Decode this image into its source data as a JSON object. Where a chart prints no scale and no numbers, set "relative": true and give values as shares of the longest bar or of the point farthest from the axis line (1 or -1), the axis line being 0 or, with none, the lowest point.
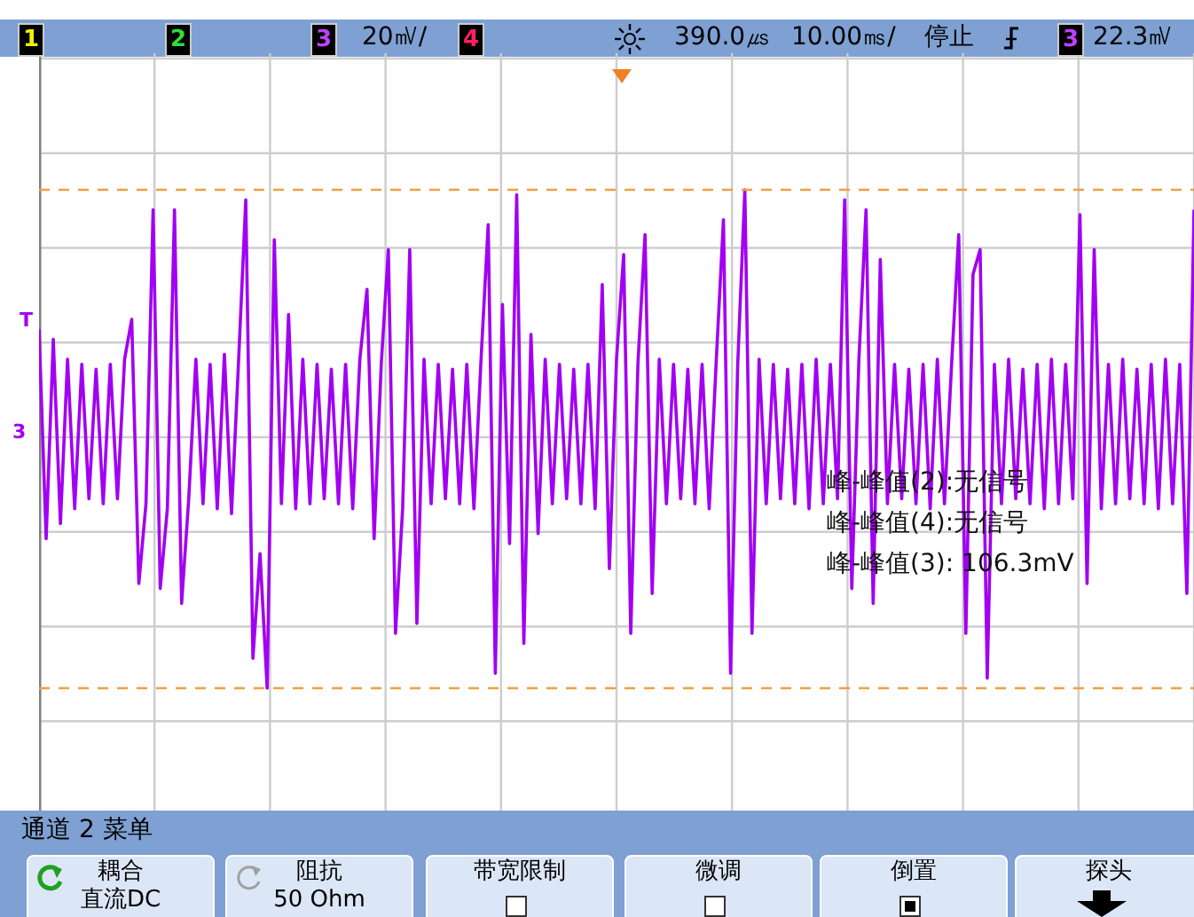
{
  "chart_data": {
    "type": "line",
    "relative": true,
    "grid": true,
    "marker": "none",
    "color": "#a100f2",
    "categories": [
      null,
      null,
      null,
      null,
      null,
      null,
      null,
      null,
      null,
      null,
      null,
      null,
      null,
      null,
      null,
      null,
      null,
      null,
      null,
      null,
      null,
      null,
      null,
      null,
      null,
      null,
      null,
      null,
      null,
      null,
      null,
      null,
      null,
      null,
      null,
      null,
      null,
      null,
      null,
      null,
      null,
      null,
      null,
      null,
      null,
      null,
      null,
      null,
      null,
      null,
      null,
      null,
      null,
      null,
      null,
      null,
      null,
      null,
      null,
      null,
      null,
      null,
      null,
      null,
      null,
      null,
      null,
      null,
      null,
      null,
      null,
      null,
      null,
      null,
      null,
      null,
      null,
      null,
      null,
      null,
      null,
      null,
      null,
      null,
      null,
      null,
      null,
      null,
      null,
      null,
      null,
      null,
      null,
      null,
      null,
      null,
      null,
      null,
      null,
      null,
      null,
      null,
      null,
      null,
      null,
      null,
      null,
      null,
      null,
      null,
      null,
      null,
      null,
      null,
      null,
      null,
      null,
      null,
      null,
      null,
      null,
      null,
      null,
      null,
      null,
      null,
      null,
      null,
      null,
      null,
      null,
      null,
      null,
      null,
      null,
      null,
      null,
      null,
      null,
      null,
      null,
      null,
      null,
      null,
      null,
      null,
      null,
      null,
      null,
      null,
      null,
      null,
      null,
      null,
      null,
      null,
      null,
      null,
      null,
      null,
      null,
      null,
      null
    ],
    "values": [
      0.72,
      0.3,
      0.7,
      0.33,
      0.66,
      0.36,
      0.65,
      0.38,
      0.64,
      0.37,
      0.65,
      0.38,
      0.66,
      0.74,
      0.21,
      0.37,
      0.96,
      0.2,
      0.36,
      0.96,
      0.17,
      0.38,
      0.66,
      0.37,
      0.65,
      0.36,
      0.67,
      0.35,
      0.66,
      0.98,
      0.06,
      0.27,
      0.0,
      0.9,
      0.37,
      0.75,
      0.36,
      0.66,
      0.37,
      0.65,
      0.38,
      0.64,
      0.37,
      0.65,
      0.36,
      0.66,
      0.8,
      0.3,
      0.65,
      0.88,
      0.11,
      0.36,
      0.88,
      0.13,
      0.66,
      0.37,
      0.65,
      0.38,
      0.64,
      0.37,
      0.65,
      0.36,
      0.66,
      0.93,
      0.03,
      0.77,
      0.29,
      0.99,
      0.09,
      0.71,
      0.31,
      0.66,
      0.37,
      0.65,
      0.38,
      0.64,
      0.37,
      0.65,
      0.36,
      0.81,
      0.24,
      0.66,
      0.87,
      0.11,
      0.65,
      0.91,
      0.19,
      0.66,
      0.37,
      0.65,
      0.38,
      0.64,
      0.37,
      0.65,
      0.36,
      0.66,
      0.94,
      0.03,
      0.65,
      1.0,
      0.11,
      0.66,
      0.37,
      0.65,
      0.38,
      0.64,
      0.37,
      0.65,
      0.36,
      0.66,
      0.37,
      0.65,
      0.38,
      0.98,
      0.2,
      0.66,
      0.96,
      0.17,
      0.86,
      0.37,
      0.65,
      0.38,
      0.64,
      0.37,
      0.65,
      0.36,
      0.66,
      0.37,
      0.65,
      0.91,
      0.11,
      0.83,
      0.88,
      0.02,
      0.65,
      0.37,
      0.66,
      0.38,
      0.64,
      0.37,
      0.65,
      0.36,
      0.66,
      0.37,
      0.65,
      0.38,
      0.95,
      0.21,
      0.88,
      0.36,
      0.65,
      0.37,
      0.66,
      0.38,
      0.64,
      0.37,
      0.65,
      0.36,
      0.66,
      0.37,
      0.65,
      0.19,
      0.96
    ],
    "ref_lines": [
      {
        "axis": "y",
        "value": 1,
        "color": "#f0a040",
        "line_style": "dashed"
      },
      {
        "axis": "y",
        "value": 0,
        "color": "#f0a040",
        "line_style": "dashed"
      }
    ],
    "annotations": [
      "1",
      "2",
      "3",
      "20㎷/",
      "4",
      "390.0㎲",
      "10.00㎳/",
      "停止",
      "3",
      "22.3㎷",
      "T",
      "3",
      "峰-峰值(2):无信号",
      "峰-峰值(4):无信号",
      "峰-峰值(3): 106.3mV",
      "通道 2 菜单",
      "耦合",
      "直流DC",
      "阻抗",
      "50 Ohm",
      "带宽限制",
      "微调",
      "倒置",
      "探头"
    ]
  }
}
